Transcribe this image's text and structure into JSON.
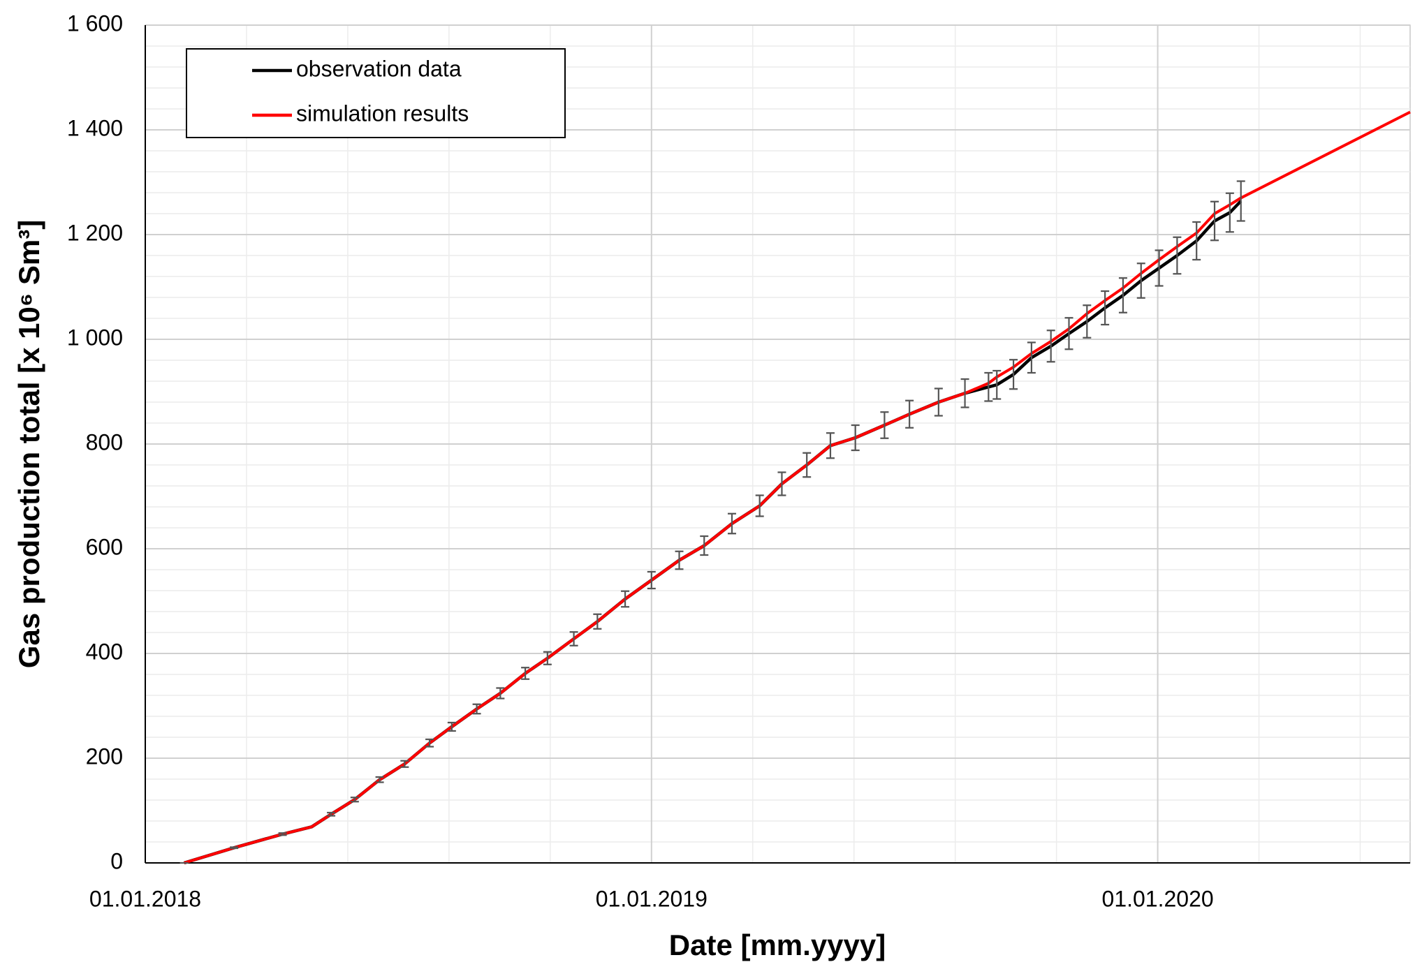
{
  "chart_data": {
    "type": "line",
    "x_label": "Date [mm.yyyy]",
    "y_label": "Gas production total [x 10⁶ Sm³]",
    "x": [
      "29.01.2018",
      "06.03.2018",
      "10.04.2018",
      "01.05.2018",
      "15.05.2018",
      "01.06.2018",
      "19.06.2018",
      "07.07.2018",
      "25.07.2018",
      "10.08.2018",
      "28.08.2018",
      "14.09.2018",
      "02.10.2018",
      "18.10.2018",
      "06.11.2018",
      "23.11.2018",
      "13.12.2018",
      "01.01.2019",
      "21.01.2019",
      "08.02.2019",
      "28.02.2019",
      "20.03.2019",
      "05.04.2019",
      "23.04.2019",
      "10.05.2019",
      "28.05.2019",
      "18.06.2019",
      "06.07.2019",
      "27.07.2019",
      "15.08.2019",
      "01.09.2019",
      "07.09.2019",
      "19.09.2019",
      "02.10.2019",
      "16.10.2019",
      "29.10.2019",
      "11.11.2019",
      "24.11.2019",
      "07.12.2019",
      "20.12.2019",
      "02.01.2020",
      "15.01.2020",
      "29.01.2020",
      "11.02.2020",
      "22.02.2020",
      "01.03.2020",
      "01.07.2020"
    ],
    "series": [
      {
        "name": "observation data",
        "color": "#000000",
        "values": [
          0,
          29,
          55,
          69,
          93,
          121,
          159,
          189,
          229,
          260,
          294,
          324,
          362,
          391,
          428,
          461,
          504,
          540,
          578,
          606,
          648,
          682,
          724,
          760,
          797,
          812,
          836,
          857,
          880,
          897,
          909,
          913,
          933,
          965,
          987,
          1011,
          1034,
          1060,
          1084,
          1112,
          1136,
          1160,
          1188,
          1226,
          1242,
          1264,
          null
        ],
        "errors": [
          0,
          1,
          2,
          null,
          3,
          4,
          5,
          6,
          7,
          8,
          9,
          10,
          11,
          12,
          13,
          14,
          15,
          16,
          17,
          18,
          19,
          20,
          22,
          23,
          24,
          24,
          25,
          26,
          26,
          27,
          27,
          27,
          28,
          29,
          30,
          30,
          31,
          32,
          33,
          33,
          34,
          35,
          36,
          37,
          37,
          38,
          null
        ],
        "error_color": "#555555"
      },
      {
        "name": "simulation results",
        "color": "#ff0000",
        "values": [
          0,
          29,
          55,
          69,
          93,
          121,
          159,
          189,
          229,
          260,
          294,
          324,
          362,
          391,
          428,
          461,
          504,
          540,
          578,
          606,
          648,
          682,
          724,
          760,
          797,
          812,
          836,
          857,
          880,
          897,
          916,
          928,
          947,
          973,
          996,
          1020,
          1049,
          1074,
          1098,
          1126,
          1152,
          1177,
          1203,
          1240,
          1257,
          1270,
          1434
        ]
      }
    ],
    "xlim": [
      "01.01.2018",
      "01.07.2020"
    ],
    "xticks": [
      "01.01.2018",
      "01.01.2019",
      "01.01.2020"
    ],
    "ylim": [
      0,
      1600
    ],
    "yticks": [
      0,
      200,
      400,
      600,
      800,
      {
        "value": 1000,
        "label": "1 000"
      },
      {
        "value": 1200,
        "label": "1 200"
      },
      {
        "value": 1400,
        "label": "1 400"
      },
      {
        "value": 1600,
        "label": "1 600"
      }
    ],
    "grid": true,
    "minor_grid": true,
    "legend": "upper left"
  }
}
